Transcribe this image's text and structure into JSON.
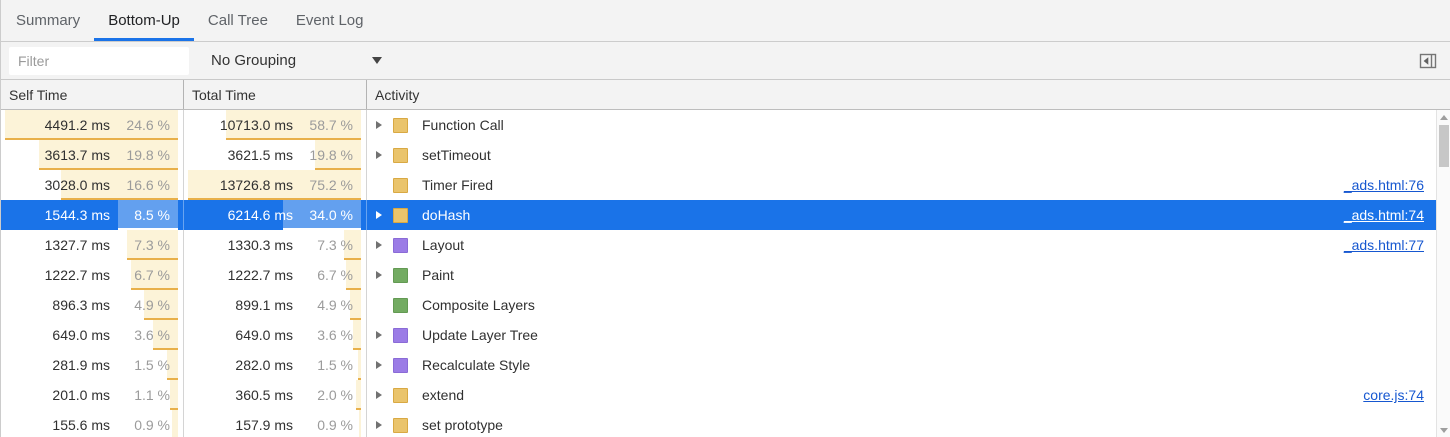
{
  "tabs": [
    {
      "label": "Summary",
      "active": false
    },
    {
      "label": "Bottom-Up",
      "active": true
    },
    {
      "label": "Call Tree",
      "active": false
    },
    {
      "label": "Event Log",
      "active": false
    }
  ],
  "toolbar": {
    "filter_placeholder": "Filter",
    "grouping_selected": "No Grouping"
  },
  "table": {
    "columns": [
      "Self Time",
      "Total Time",
      "Activity"
    ],
    "rows": [
      {
        "self": "4491.2 ms",
        "self_pct": "24.6 %",
        "self_pct_num": 24.6,
        "total": "10713.0 ms",
        "total_pct": "58.7 %",
        "total_pct_num": 58.7,
        "activity": "Function Call",
        "category": "scripting",
        "expandable": true,
        "link": null,
        "selected": false
      },
      {
        "self": "3613.7 ms",
        "self_pct": "19.8 %",
        "self_pct_num": 19.8,
        "total": "3621.5 ms",
        "total_pct": "19.8 %",
        "total_pct_num": 19.8,
        "activity": "setTimeout",
        "category": "scripting",
        "expandable": true,
        "link": null,
        "selected": false
      },
      {
        "self": "3028.0 ms",
        "self_pct": "16.6 %",
        "self_pct_num": 16.6,
        "total": "13726.8 ms",
        "total_pct": "75.2 %",
        "total_pct_num": 75.2,
        "activity": "Timer Fired",
        "category": "scripting",
        "expandable": false,
        "link": "_ads.html:76",
        "selected": false
      },
      {
        "self": "1544.3 ms",
        "self_pct": "8.5 %",
        "self_pct_num": 8.5,
        "total": "6214.6 ms",
        "total_pct": "34.0 %",
        "total_pct_num": 34.0,
        "activity": "doHash",
        "category": "scripting",
        "expandable": true,
        "link": "_ads.html:74",
        "selected": true
      },
      {
        "self": "1327.7 ms",
        "self_pct": "7.3 %",
        "self_pct_num": 7.3,
        "total": "1330.3 ms",
        "total_pct": "7.3 %",
        "total_pct_num": 7.3,
        "activity": "Layout",
        "category": "rendering",
        "expandable": true,
        "link": "_ads.html:77",
        "selected": false
      },
      {
        "self": "1222.7 ms",
        "self_pct": "6.7 %",
        "self_pct_num": 6.7,
        "total": "1222.7 ms",
        "total_pct": "6.7 %",
        "total_pct_num": 6.7,
        "activity": "Paint",
        "category": "painting",
        "expandable": true,
        "link": null,
        "selected": false
      },
      {
        "self": "896.3 ms",
        "self_pct": "4.9 %",
        "self_pct_num": 4.9,
        "total": "899.1 ms",
        "total_pct": "4.9 %",
        "total_pct_num": 4.9,
        "activity": "Composite Layers",
        "category": "painting",
        "expandable": false,
        "link": null,
        "selected": false
      },
      {
        "self": "649.0 ms",
        "self_pct": "3.6 %",
        "self_pct_num": 3.6,
        "total": "649.0 ms",
        "total_pct": "3.6 %",
        "total_pct_num": 3.6,
        "activity": "Update Layer Tree",
        "category": "rendering",
        "expandable": true,
        "link": null,
        "selected": false
      },
      {
        "self": "281.9 ms",
        "self_pct": "1.5 %",
        "self_pct_num": 1.5,
        "total": "282.0 ms",
        "total_pct": "1.5 %",
        "total_pct_num": 1.5,
        "activity": "Recalculate Style",
        "category": "rendering",
        "expandable": true,
        "link": null,
        "selected": false
      },
      {
        "self": "201.0 ms",
        "self_pct": "1.1 %",
        "self_pct_num": 1.1,
        "total": "360.5 ms",
        "total_pct": "2.0 %",
        "total_pct_num": 2.0,
        "activity": "extend",
        "category": "scripting",
        "expandable": true,
        "link": "core.js:74",
        "selected": false
      },
      {
        "self": "155.6 ms",
        "self_pct": "0.9 %",
        "self_pct_num": 0.9,
        "total": "157.9 ms",
        "total_pct": "0.9 %",
        "total_pct_num": 0.9,
        "activity": "set prototype",
        "category": "scripting",
        "expandable": true,
        "link": null,
        "selected": false
      }
    ]
  },
  "colors": {
    "accent": "#1a73e8",
    "link": "#1657d0",
    "bar_fill": "#fcf3d8",
    "bar_border": "#e8b04a",
    "category": {
      "scripting": {
        "fill": "#eac46c",
        "border": "#d9a943"
      },
      "rendering": {
        "fill": "#9b7ce6",
        "border": "#8a6bd6"
      },
      "painting": {
        "fill": "#73ab62",
        "border": "#639a53"
      }
    }
  }
}
